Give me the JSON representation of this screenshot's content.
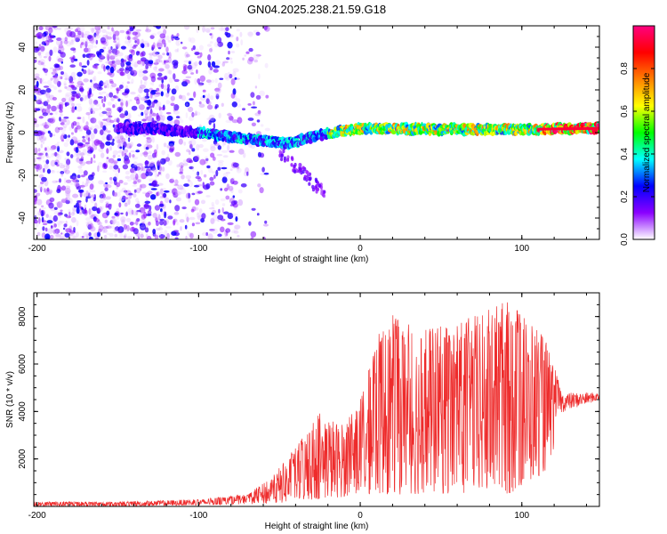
{
  "title": "GN04.2025.238.21.59.G18",
  "chart_data": [
    {
      "type": "heatmap",
      "xlabel": "Height of straight line (km)",
      "ylabel": "Frequency (Hz)",
      "xlim": [
        -202,
        148
      ],
      "ylim": [
        -50,
        50
      ],
      "xticks": [
        -200,
        -100,
        0,
        100
      ],
      "yticks": [
        -40,
        -20,
        0,
        20,
        40
      ],
      "colorbar": {
        "label": "Normalized spectral amplitude",
        "range": [
          0,
          1
        ],
        "ticks": [
          0.0,
          0.2,
          0.4,
          0.6,
          0.8
        ],
        "tick_labels": [
          "0.0",
          "0.2",
          "0.4",
          "0.6",
          "0.8"
        ],
        "colormap": [
          "#ffffff",
          "#8a00ff",
          "#0000ff",
          "#00ffff",
          "#00ff00",
          "#ffff00",
          "#ff8000",
          "#ff0000",
          "#ff0080"
        ]
      },
      "ridge": {
        "description_points": [
          {
            "x": -130,
            "y": 2
          },
          {
            "x": -100,
            "y": 0
          },
          {
            "x": -70,
            "y": -3
          },
          {
            "x": -45,
            "y": -5
          },
          {
            "x": -30,
            "y": -2
          },
          {
            "x": -10,
            "y": 1
          },
          {
            "x": 0,
            "y": 2
          },
          {
            "x": 50,
            "y": 1.5
          },
          {
            "x": 100,
            "y": 1.5
          },
          {
            "x": 148,
            "y": 2
          }
        ]
      }
    },
    {
      "type": "line",
      "xlabel": "Height of straight line (km)",
      "ylabel": "SNR (10 * v/v)",
      "xlim": [
        -202,
        148
      ],
      "ylim": [
        0,
        9000
      ],
      "xticks": [
        -200,
        -100,
        0,
        100
      ],
      "yticks": [
        2000,
        4000,
        6000,
        8000
      ],
      "color": "#ee2b2b",
      "envelope": [
        {
          "x": -202,
          "lo": 0,
          "hi": 200
        },
        {
          "x": -150,
          "lo": 0,
          "hi": 200
        },
        {
          "x": -100,
          "lo": 50,
          "hi": 300
        },
        {
          "x": -70,
          "lo": 100,
          "hi": 500
        },
        {
          "x": -55,
          "lo": 100,
          "hi": 1200
        },
        {
          "x": -40,
          "lo": 200,
          "hi": 2500
        },
        {
          "x": -25,
          "lo": 300,
          "hi": 4000
        },
        {
          "x": -10,
          "lo": 400,
          "hi": 3500
        },
        {
          "x": 0,
          "lo": 500,
          "hi": 4500
        },
        {
          "x": 15,
          "lo": 500,
          "hi": 8200
        },
        {
          "x": 40,
          "lo": 500,
          "hi": 7500
        },
        {
          "x": 70,
          "lo": 500,
          "hi": 8000
        },
        {
          "x": 95,
          "lo": 500,
          "hi": 8800
        },
        {
          "x": 115,
          "lo": 1500,
          "hi": 7000
        },
        {
          "x": 125,
          "lo": 3500,
          "hi": 4800
        },
        {
          "x": 148,
          "lo": 4300,
          "hi": 4800
        }
      ]
    }
  ]
}
